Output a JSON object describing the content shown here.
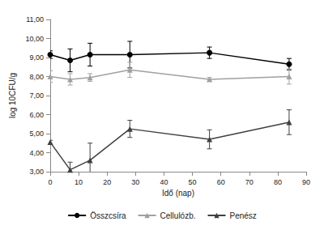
{
  "chart_data": {
    "type": "line",
    "x_label": "Idő (nap)",
    "y_label": "log 10CFU/g",
    "xlim": [
      0,
      90
    ],
    "xticks": [
      0,
      10,
      20,
      30,
      40,
      50,
      60,
      70,
      80,
      90
    ],
    "ylim": [
      3,
      11
    ],
    "yticks": [
      {
        "value": 3,
        "label": "3,00"
      },
      {
        "value": 4,
        "label": "4,00"
      },
      {
        "value": 5,
        "label": "5,00"
      },
      {
        "value": 6,
        "label": "6,00"
      },
      {
        "value": 7,
        "label": "7,00"
      },
      {
        "value": 8,
        "label": "8,00"
      },
      {
        "value": 9,
        "label": "9,00"
      },
      {
        "value": 10,
        "label": "10,00"
      },
      {
        "value": 11,
        "label": "11,00"
      }
    ],
    "grid": false,
    "legend": "bottom",
    "x": [
      0,
      7,
      14,
      28,
      56,
      84
    ],
    "series": [
      {
        "name": "Összcsíra",
        "color": "#000000",
        "marker": "circle",
        "values": [
          9.15,
          8.85,
          9.15,
          9.15,
          9.25,
          8.65
        ],
        "errors": [
          0.2,
          0.6,
          0.6,
          0.7,
          0.3,
          0.3
        ]
      },
      {
        "name": "Cellulózb.",
        "color": "#a0a0a0",
        "marker": "triangle",
        "values": [
          8.0,
          7.85,
          7.95,
          8.35,
          7.85,
          8.0
        ],
        "errors": [
          0.3,
          0.3,
          0.2,
          0.4,
          0.1,
          0.4
        ]
      },
      {
        "name": "Penész",
        "color": "#404040",
        "marker": "triangle",
        "values": [
          4.55,
          3.1,
          3.6,
          5.25,
          4.7,
          5.6
        ],
        "errors": [
          0.1,
          0.4,
          0.9,
          0.45,
          0.5,
          0.65
        ]
      }
    ]
  }
}
